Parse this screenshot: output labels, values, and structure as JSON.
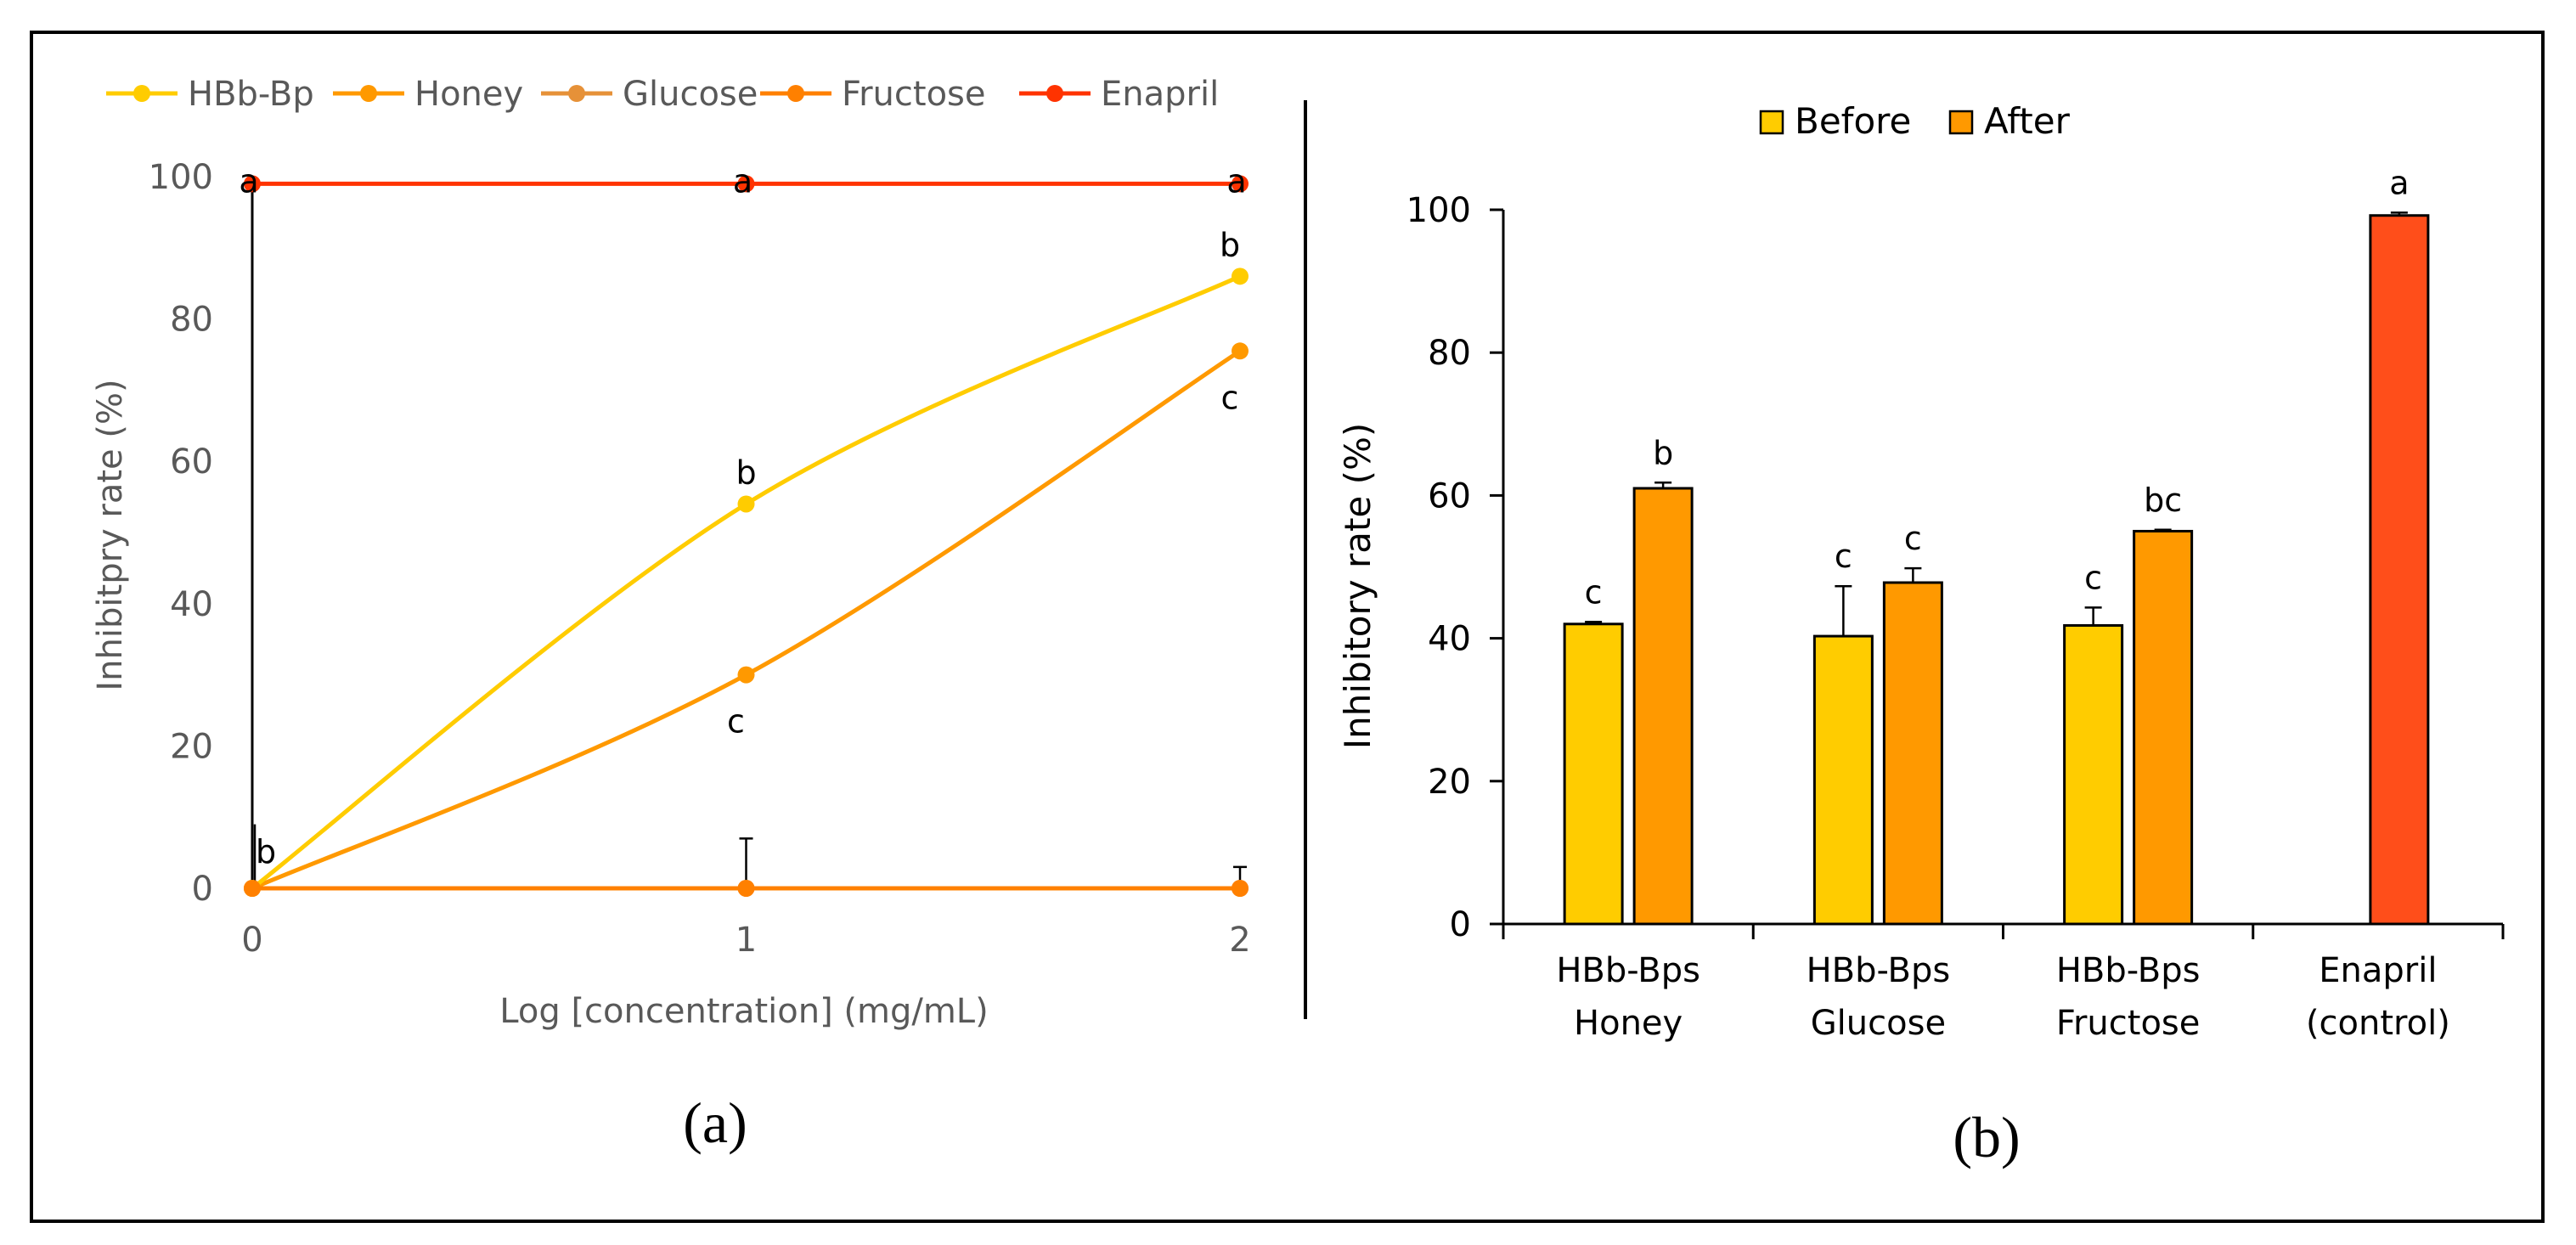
{
  "colors": {
    "hbb": "#FFCC00",
    "honey": "#FF9900",
    "glucose": "#E69138",
    "fructose": "#FF8000",
    "enapril": "#FF3300",
    "before": "#FFCC00",
    "after": "#FF9900",
    "control": "#FF4E1A",
    "axis_gray": "#595959"
  },
  "chart_data": [
    {
      "type": "line",
      "panel_label": "(a)",
      "xlabel": "Log [concentration] (mg/mL)",
      "ylabel": "Inhibitpry rate (%)",
      "x": [
        0,
        1,
        2
      ],
      "x_ticks": [
        "0",
        "1",
        "2"
      ],
      "ylim": [
        0,
        100
      ],
      "y_ticks": [
        "0",
        "20",
        "40",
        "60",
        "80",
        "100"
      ],
      "legend_position": "top",
      "series": [
        {
          "name": "HBb-Bp",
          "values": [
            0,
            54,
            86
          ],
          "labels": [
            "",
            "b",
            "b"
          ]
        },
        {
          "name": "Honey",
          "values": [
            0,
            30,
            75.5
          ],
          "labels": [
            "",
            "c",
            "c"
          ]
        },
        {
          "name": "Glucose",
          "values": [
            0,
            0,
            0
          ],
          "labels": [
            "b",
            "",
            ""
          ]
        },
        {
          "name": "Fructose",
          "values": [
            0,
            0,
            0
          ],
          "labels": [
            "",
            "",
            ""
          ]
        },
        {
          "name": "Enapril",
          "values": [
            99,
            99,
            99
          ],
          "labels": [
            "a",
            "a",
            "a"
          ]
        }
      ]
    },
    {
      "type": "bar",
      "panel_label": "(b)",
      "xlabel": "",
      "ylabel": "Inhibitory rate (%)",
      "ylim": [
        0,
        100
      ],
      "y_ticks": [
        "0",
        "20",
        "40",
        "60",
        "80",
        "100"
      ],
      "legend_position": "top",
      "categories": [
        [
          "HBb-Bps",
          "Honey"
        ],
        [
          "HBb-Bps",
          "Glucose"
        ],
        [
          "HBb-Bps",
          "Fructose"
        ],
        [
          "Enapril",
          "(control)"
        ]
      ],
      "series": [
        {
          "name": "Before",
          "values": [
            42,
            40.3,
            41.8,
            null
          ],
          "errors": [
            0.3,
            7,
            2.5,
            null
          ],
          "labels": [
            "c",
            "c",
            "c",
            ""
          ]
        },
        {
          "name": "After",
          "values": [
            61,
            47.8,
            55,
            null
          ],
          "errors": [
            0.8,
            2,
            0.2,
            null
          ],
          "labels": [
            "b",
            "c",
            "bc",
            ""
          ]
        },
        {
          "name": "Enapril",
          "values": [
            null,
            null,
            null,
            99.2
          ],
          "errors": [
            null,
            null,
            null,
            0.4
          ],
          "labels": [
            "",
            "",
            "",
            "a"
          ]
        }
      ]
    }
  ]
}
